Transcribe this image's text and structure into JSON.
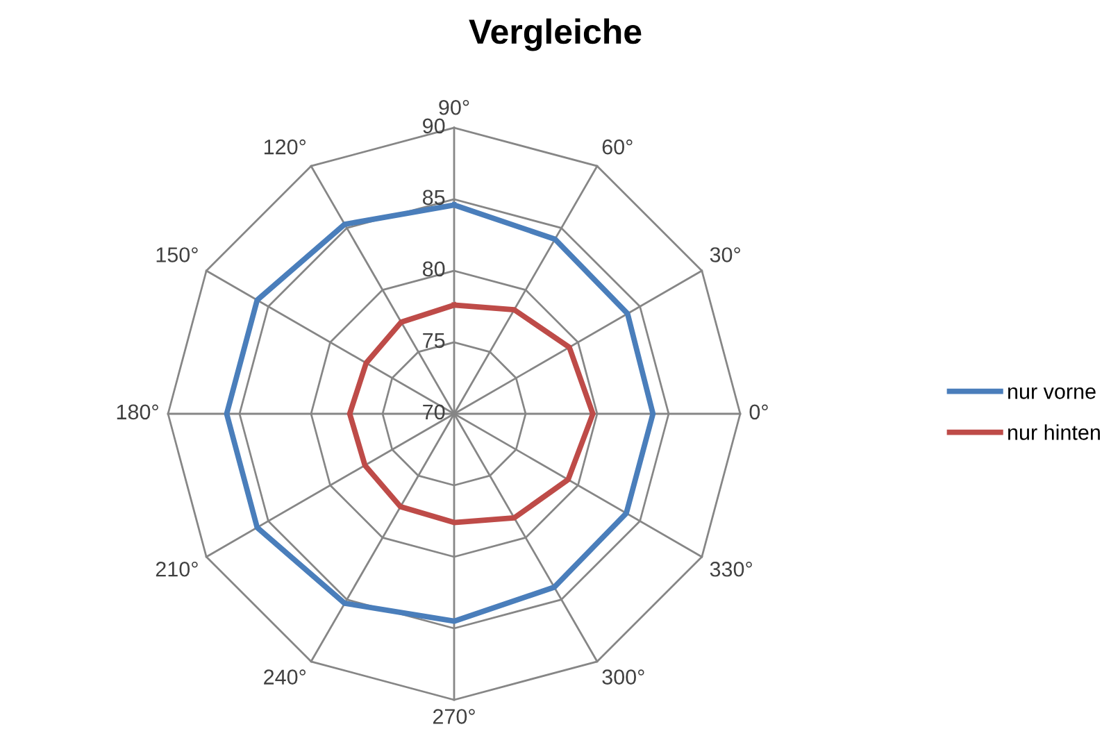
{
  "chart_data": {
    "type": "radar",
    "title": "Vergleiche",
    "categories": [
      "90°",
      "60°",
      "30°",
      "0°",
      "330°",
      "300°",
      "270°",
      "240°",
      "210°",
      "180°",
      "150°",
      "120°"
    ],
    "series": [
      {
        "name": "nur vorne",
        "color": "#4a7ebb",
        "values": [
          84.6,
          84.1,
          84.0,
          83.9,
          83.9,
          84.0,
          84.5,
          85.3,
          85.9,
          85.9,
          85.9,
          85.3
        ]
      },
      {
        "name": "nur hinten",
        "color": "#be4b48",
        "values": [
          77.6,
          78.4,
          79.3,
          79.7,
          79.2,
          78.4,
          77.6,
          77.5,
          77.2,
          77.3,
          77.1,
          77.4
        ]
      }
    ],
    "ylim": [
      70,
      90
    ],
    "yticks": [
      70,
      75,
      80,
      85,
      90
    ],
    "grid": true,
    "legend": "right"
  }
}
